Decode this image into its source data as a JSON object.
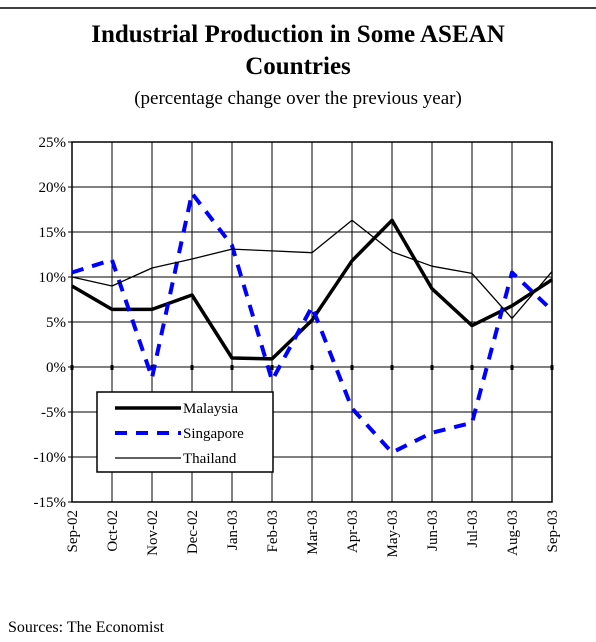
{
  "chart_data": {
    "type": "line",
    "title": "Industrial Production in Some ASEAN Countries",
    "title_lines": [
      "Industrial Production in Some ASEAN",
      "Countries"
    ],
    "subtitle": "(percentage change over the previous year)",
    "source": "Sources: The Economist",
    "categories": [
      "Sep-02",
      "Oct-02",
      "Nov-02",
      "Dec-02",
      "Jan-03",
      "Feb-03",
      "Mar-03",
      "Apr-03",
      "May-03",
      "Jun-03",
      "Jul-03",
      "Aug-03",
      "Sep-03"
    ],
    "series": [
      {
        "name": "Malaysia",
        "color": "#000000",
        "style": "thick",
        "values": [
          9,
          6.4,
          6.4,
          8,
          1,
          0.9,
          5.2,
          11.8,
          16.3,
          8.7,
          4.6,
          6.8,
          9.7
        ]
      },
      {
        "name": "Singapore",
        "color": "#0000ff",
        "style": "dashed",
        "values": [
          10.5,
          11.9,
          -1.2,
          19.3,
          13.5,
          -1.5,
          6.7,
          -4.6,
          -9.5,
          -7.3,
          -6.2,
          10.5,
          6.3
        ]
      },
      {
        "name": "Thailand",
        "color": "#000000",
        "style": "thin",
        "values": [
          10,
          9,
          11,
          12,
          13.1,
          12.9,
          12.7,
          16.3,
          12.8,
          11.2,
          10.4,
          5.4,
          10.6
        ]
      }
    ],
    "ylim": [
      -15,
      25
    ],
    "yticks": [
      {
        "value": -15,
        "label": "-15%"
      },
      {
        "value": -10,
        "label": "-10%"
      },
      {
        "value": -5,
        "label": "-5%"
      },
      {
        "value": 0,
        "label": "0%"
      },
      {
        "value": 5,
        "label": "5%"
      },
      {
        "value": 10,
        "label": "10%"
      },
      {
        "value": 15,
        "label": "15%"
      },
      {
        "value": 20,
        "label": "20%"
      },
      {
        "value": 25,
        "label": "25%"
      }
    ],
    "grid": true
  }
}
